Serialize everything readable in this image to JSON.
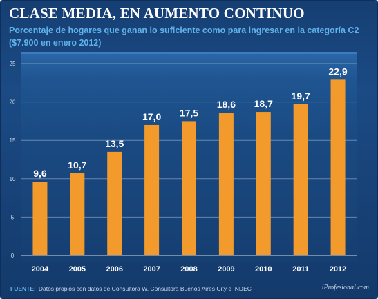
{
  "header": {
    "title": "CLASE MEDIA, EN AUMENTO CONTINUO",
    "subtitle": "Porcentaje de hogares que ganan lo suficiente como para ingresar en la categoría C2 ($7.900 en enero 2012)"
  },
  "footer": {
    "source_label": "FUENTE:",
    "source_text": "Datos propios con datos de Consultora W, Consultora Buenos Aires City e INDEC",
    "brand": "iProfesional.com"
  },
  "colors": {
    "bar": "#f29b2c",
    "background": "#1b4a84",
    "subtitle": "#5fb3ea"
  },
  "chart_data": {
    "type": "bar",
    "categories": [
      "2004",
      "2005",
      "2006",
      "2007",
      "2008",
      "2009",
      "2010",
      "2011",
      "2012"
    ],
    "values": [
      9.6,
      10.7,
      13.5,
      17.0,
      17.5,
      18.6,
      18.7,
      19.7,
      22.9
    ],
    "value_labels": [
      "9,6",
      "10,7",
      "13,5",
      "17,0",
      "17,5",
      "18,6",
      "18,7",
      "19,7",
      "22,9"
    ],
    "yticks": [
      "0",
      "5",
      "10",
      "15",
      "20",
      "25"
    ],
    "ylim": [
      0,
      25
    ],
    "grid": true,
    "title": "CLASE MEDIA, EN AUMENTO CONTINUO",
    "xlabel": "",
    "ylabel": ""
  }
}
